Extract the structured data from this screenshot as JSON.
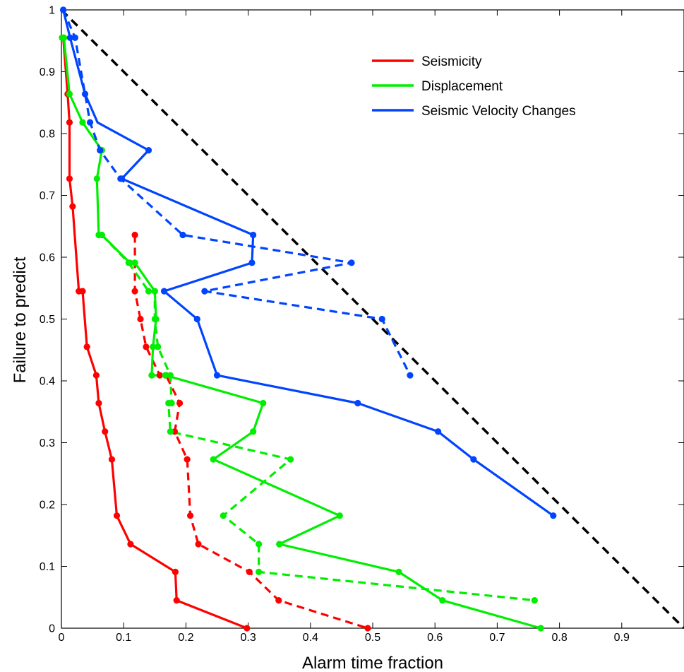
{
  "chart_data": {
    "type": "line",
    "title": "",
    "xlabel": "Alarm time fraction",
    "ylabel": "Failure to predict",
    "xlim": [
      0,
      1
    ],
    "ylim": [
      0,
      1
    ],
    "xticks": [
      0,
      0.1,
      0.2,
      0.3,
      0.4,
      0.5,
      0.6,
      0.7,
      0.8,
      0.9
    ],
    "yticks": [
      0,
      0.1,
      0.2,
      0.3,
      0.4,
      0.5,
      0.6,
      0.7,
      0.8,
      0.9,
      1
    ],
    "xtick_labels": [
      "0",
      "0.1",
      "0.2",
      "0.3",
      "0.4",
      "0.5",
      "0.6",
      "0.7",
      "0.8",
      "0.9"
    ],
    "ytick_labels": [
      "0",
      "0.1",
      "0.2",
      "0.3",
      "0.4",
      "0.5",
      "0.6",
      "0.7",
      "0.8",
      "0.9",
      "1"
    ],
    "grid": false,
    "legend_position": "top-right",
    "legend": [
      {
        "name": "Seismicity",
        "color": "#ff0000"
      },
      {
        "name": "Displacement",
        "color": "#00ee00"
      },
      {
        "name": "Seismic Velocity Changes",
        "color": "#0044ff"
      }
    ],
    "reference_line": {
      "x": [
        0,
        1
      ],
      "y": [
        1,
        0
      ],
      "color": "#000000",
      "style": "dashed"
    },
    "series": [
      {
        "legend_index": 0,
        "style": "solid",
        "color": "#ff0000",
        "x": [
          0.003,
          0.01,
          0.013,
          0.013,
          0.018,
          0.028,
          0.034,
          0.041,
          0.056,
          0.06,
          0.07,
          0.081,
          0.089,
          0.111,
          0.183,
          0.185,
          0.298
        ],
        "y": [
          0.955,
          0.864,
          0.818,
          0.727,
          0.682,
          0.545,
          0.545,
          0.455,
          0.409,
          0.364,
          0.318,
          0.273,
          0.182,
          0.136,
          0.091,
          0.045,
          0.0
        ]
      },
      {
        "legend_index": 0,
        "style": "dashed",
        "color": "#ff0000",
        "x": [
          0.118,
          0.118,
          0.127,
          0.136,
          0.158,
          0.168,
          0.19,
          0.182,
          0.202,
          0.207,
          0.22,
          0.302,
          0.349,
          0.492
        ],
        "y": [
          0.636,
          0.545,
          0.5,
          0.455,
          0.409,
          0.409,
          0.364,
          0.318,
          0.273,
          0.182,
          0.136,
          0.091,
          0.045,
          0.0
        ]
      },
      {
        "legend_index": 1,
        "style": "solid",
        "color": "#00ee00",
        "x": [
          0.001,
          0.004,
          0.013,
          0.034,
          0.065,
          0.057,
          0.06,
          0.065,
          0.11,
          0.118,
          0.15,
          0.152,
          0.147,
          0.145,
          0.167,
          0.324,
          0.308,
          0.244,
          0.447,
          0.35,
          0.542,
          0.612,
          0.77
        ],
        "y": [
          0.955,
          0.955,
          0.864,
          0.818,
          0.773,
          0.727,
          0.636,
          0.636,
          0.591,
          0.591,
          0.545,
          0.5,
          0.455,
          0.409,
          0.409,
          0.364,
          0.318,
          0.273,
          0.182,
          0.136,
          0.091,
          0.045,
          0.0
        ]
      },
      {
        "legend_index": 1,
        "style": "dashed",
        "color": "#00ee00",
        "x": [
          0.065,
          0.108,
          0.14,
          0.15,
          0.15,
          0.155,
          0.175,
          0.177,
          0.172,
          0.175,
          0.368,
          0.26,
          0.317,
          0.317,
          0.76
        ],
        "y": [
          0.636,
          0.591,
          0.545,
          0.545,
          0.5,
          0.455,
          0.409,
          0.364,
          0.364,
          0.318,
          0.273,
          0.182,
          0.136,
          0.091,
          0.045
        ]
      },
      {
        "legend_index": 2,
        "style": "solid",
        "color": "#0044ff",
        "x": [
          0.003,
          0.014,
          0.038,
          0.058,
          0.14,
          0.097,
          0.308,
          0.306,
          0.165,
          0.218,
          0.25,
          0.476,
          0.605,
          0.662,
          0.79
        ],
        "y": [
          1.0,
          0.955,
          0.864,
          0.818,
          0.773,
          0.727,
          0.636,
          0.591,
          0.545,
          0.5,
          0.409,
          0.364,
          0.318,
          0.273,
          0.182
        ],
        "skip_markers": [
          3
        ]
      },
      {
        "legend_index": 2,
        "style": "dashed",
        "color": "#0044ff",
        "x": [
          0.003,
          0.022,
          0.046,
          0.062,
          0.095,
          0.195,
          0.466,
          0.23,
          0.515,
          0.56
        ],
        "y": [
          1.0,
          0.955,
          0.818,
          0.773,
          0.727,
          0.636,
          0.591,
          0.545,
          0.5,
          0.409
        ]
      }
    ]
  }
}
